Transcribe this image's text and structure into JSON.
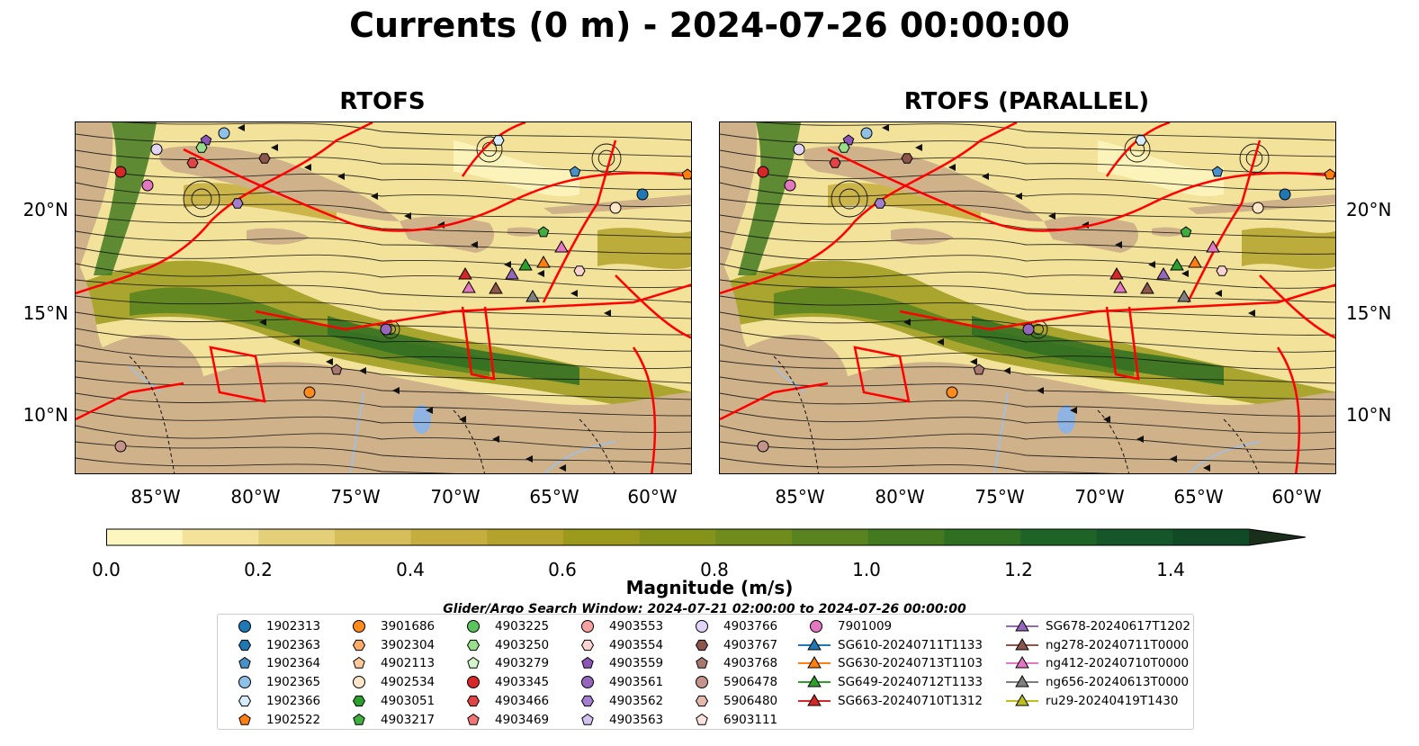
{
  "title": "Currents (0 m) - 2024-07-26 00:00:00",
  "panels": [
    {
      "title": "RTOFS"
    },
    {
      "title": "RTOFS (PARALLEL)"
    }
  ],
  "map_axes": {
    "lon_ticks": [
      "85°W",
      "80°W",
      "75°W",
      "70°W",
      "65°W",
      "60°W"
    ],
    "lat_ticks": [
      "20°N",
      "15°N",
      "10°N"
    ]
  },
  "colorbar": {
    "label": "Magnitude (m/s)",
    "ticks": [
      "0.0",
      "0.2",
      "0.4",
      "0.6",
      "0.8",
      "1.0",
      "1.2",
      "1.4"
    ],
    "colors": [
      "#fdf6bf",
      "#f2e29a",
      "#e5d07a",
      "#d6be5a",
      "#c6ae3e",
      "#b3a22c",
      "#9c9a1c",
      "#86931a",
      "#6f8c1c",
      "#58831f",
      "#437a20",
      "#2f6f22",
      "#1f6427",
      "#16572a",
      "#114a26",
      "#103d21",
      "#1a2e1c"
    ]
  },
  "search_window": "Glider/Argo Search Window: 2024-07-21 02:00:00 to 2024-07-26 00:00:00",
  "colors": {
    "boundary": "#ff0000",
    "land": "#cfb28a",
    "lake": "#8fb4e3",
    "river": "#a6bddb"
  },
  "legend": [
    {
      "label": "1902313",
      "marker": "circle",
      "color": "#1f77b4"
    },
    {
      "label": "1902363",
      "marker": "hexagon",
      "color": "#1f77b4"
    },
    {
      "label": "1902364",
      "marker": "pentagon",
      "color": "#4a90c8"
    },
    {
      "label": "1902365",
      "marker": "circle",
      "color": "#8fc0e8"
    },
    {
      "label": "1902366",
      "marker": "hexagon",
      "color": "#d6ecfa"
    },
    {
      "label": "1902522",
      "marker": "pentagon",
      "color": "#ff7f0e"
    },
    {
      "label": "3901686",
      "marker": "circle",
      "color": "#ff8c1a"
    },
    {
      "label": "3902304",
      "marker": "hexagon",
      "color": "#ffad66"
    },
    {
      "label": "4902113",
      "marker": "pentagon",
      "color": "#ffc999"
    },
    {
      "label": "4902534",
      "marker": "circle",
      "color": "#fde5c8"
    },
    {
      "label": "4903051",
      "marker": "hexagon",
      "color": "#2ca02c"
    },
    {
      "label": "4903217",
      "marker": "pentagon",
      "color": "#3fae3f"
    },
    {
      "label": "4903225",
      "marker": "circle",
      "color": "#5cc25c"
    },
    {
      "label": "4903250",
      "marker": "hexagon",
      "color": "#98df8a"
    },
    {
      "label": "4903279",
      "marker": "pentagon",
      "color": "#d2f5cc"
    },
    {
      "label": "4903345",
      "marker": "circle",
      "color": "#d62728"
    },
    {
      "label": "4903466",
      "marker": "hexagon",
      "color": "#e04444"
    },
    {
      "label": "4903469",
      "marker": "pentagon",
      "color": "#f27575"
    },
    {
      "label": "4903553",
      "marker": "circle",
      "color": "#f7a1a1"
    },
    {
      "label": "4903554",
      "marker": "hexagon",
      "color": "#fbd3d3"
    },
    {
      "label": "4903559",
      "marker": "pentagon",
      "color": "#8c56b8"
    },
    {
      "label": "4903561",
      "marker": "circle",
      "color": "#9467bd"
    },
    {
      "label": "4903562",
      "marker": "hexagon",
      "color": "#a47fd0"
    },
    {
      "label": "4903563",
      "marker": "pentagon",
      "color": "#d3c2f0"
    },
    {
      "label": "4903766",
      "marker": "circle",
      "color": "#e2d4f7"
    },
    {
      "label": "4903767",
      "marker": "hexagon",
      "color": "#8c564b"
    },
    {
      "label": "4903768",
      "marker": "pentagon",
      "color": "#a87a6f"
    },
    {
      "label": "5906478",
      "marker": "circle",
      "color": "#c4938a"
    },
    {
      "label": "5906480",
      "marker": "hexagon",
      "color": "#e5b8ac"
    },
    {
      "label": "6903111",
      "marker": "pentagon",
      "color": "#fbe3dc"
    },
    {
      "label": "7901009",
      "marker": "circle",
      "color": "#e377c2"
    },
    {
      "label": "SG610-20240711T1133",
      "marker": "triangle-line",
      "color": "#1f77b4"
    },
    {
      "label": "SG630-20240713T1103",
      "marker": "triangle-line",
      "color": "#ff7f0e"
    },
    {
      "label": "SG649-20240712T1133",
      "marker": "triangle-line",
      "color": "#2ca02c"
    },
    {
      "label": "SG663-20240710T1312",
      "marker": "triangle-line",
      "color": "#d62728"
    },
    {
      "label": "SG678-20240617T1202",
      "marker": "triangle-line",
      "color": "#9467bd"
    },
    {
      "label": "ng278-20240711T0000",
      "marker": "triangle-line",
      "color": "#8c564b"
    },
    {
      "label": "ng412-20240710T0000",
      "marker": "triangle-line",
      "color": "#e377c2"
    },
    {
      "label": "ng656-20240613T0000",
      "marker": "triangle-line",
      "color": "#7f7f7f"
    },
    {
      "label": "ru29-20240419T1430",
      "marker": "triangle-line",
      "color": "#bcbd22"
    }
  ]
}
